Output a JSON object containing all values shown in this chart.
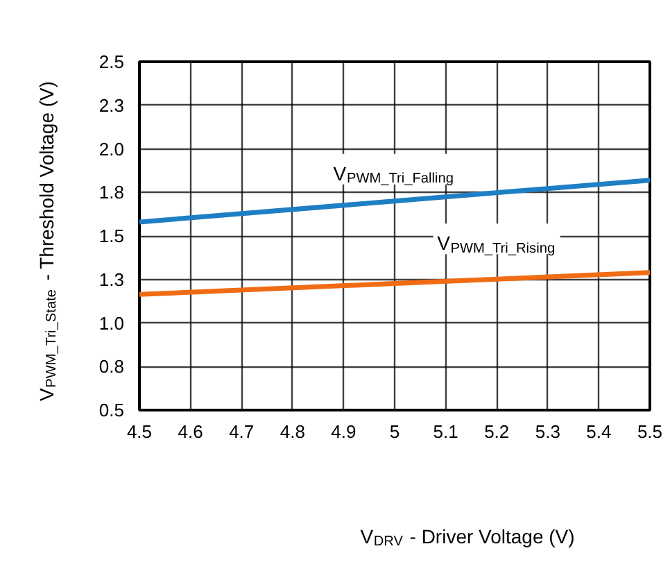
{
  "chart_data": {
    "type": "line",
    "xlabel": "V$_{DRV}$ - Driver Voltage (V)",
    "ylabel": "V$_{PWM_Tri_State}$ - Threshold Voltage (V)",
    "x": [
      4.5,
      5.0,
      5.5
    ],
    "series": [
      {
        "name": "V$_{PWM_Tri_Falling}$",
        "color": "#1f7fc4",
        "values": [
          1.58,
          1.7,
          1.82
        ]
      },
      {
        "name": "V$_{PWM_Tri_Rising}$",
        "color": "#f06c14",
        "values": [
          1.164,
          1.227,
          1.29
        ]
      }
    ],
    "xlim": [
      4.5,
      5.5
    ],
    "ylim": [
      0.5,
      2.5
    ],
    "xticks": [
      4.5,
      4.6,
      4.7,
      4.8,
      4.9,
      5,
      5.1,
      5.2,
      5.3,
      5.4,
      5.5
    ],
    "yticks": [
      0.5,
      {
        "value": 0.75,
        "label": "0.8"
      },
      {
        "value": 1,
        "label": "1.0"
      },
      {
        "value": 1.25,
        "label": "1.3"
      },
      1.5,
      {
        "value": 1.75,
        "label": "1.8"
      },
      {
        "value": 2,
        "label": "2.0"
      },
      {
        "value": 2.25,
        "label": "2.3"
      },
      2.5
    ],
    "grid": true,
    "legend": false,
    "marker": "none",
    "line_style": "solid"
  }
}
